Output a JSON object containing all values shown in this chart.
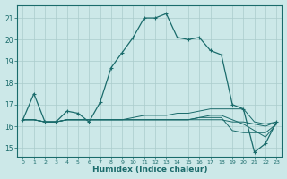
{
  "xlabel": "Humidex (Indice chaleur)",
  "background_color": "#cce8e8",
  "grid_color": "#aacccc",
  "line_color": "#1a6b6b",
  "xlim": [
    -0.5,
    23.5
  ],
  "ylim": [
    14.6,
    21.6
  ],
  "xtick_labels": [
    "0",
    "1",
    "2",
    "3",
    "4",
    "5",
    "6",
    "7",
    "8",
    "9",
    "10",
    "11",
    "12",
    "13",
    "14",
    "15",
    "16",
    "17",
    "18",
    "19",
    "20",
    "21",
    "22",
    "23"
  ],
  "ytick_labels": [
    "15",
    "16",
    "17",
    "18",
    "19",
    "20",
    "21"
  ],
  "series": [
    [
      16.3,
      17.5,
      16.2,
      16.2,
      16.7,
      16.6,
      16.2,
      17.1,
      18.7,
      19.4,
      20.1,
      21.0,
      21.0,
      21.2,
      20.1,
      20.0,
      20.1,
      19.5,
      19.3,
      17.0,
      16.8,
      14.8,
      15.2,
      16.2
    ],
    [
      16.3,
      16.3,
      16.2,
      16.2,
      16.3,
      16.3,
      16.3,
      16.3,
      16.3,
      16.3,
      16.4,
      16.5,
      16.5,
      16.5,
      16.6,
      16.6,
      16.7,
      16.8,
      16.8,
      16.8,
      16.8,
      16.2,
      16.1,
      16.2
    ],
    [
      16.3,
      16.3,
      16.2,
      16.2,
      16.3,
      16.3,
      16.3,
      16.3,
      16.3,
      16.3,
      16.3,
      16.3,
      16.3,
      16.3,
      16.3,
      16.3,
      16.4,
      16.5,
      16.5,
      16.3,
      16.1,
      15.8,
      15.5,
      16.1
    ],
    [
      16.3,
      16.3,
      16.2,
      16.2,
      16.3,
      16.3,
      16.3,
      16.3,
      16.3,
      16.3,
      16.3,
      16.3,
      16.3,
      16.3,
      16.3,
      16.3,
      16.3,
      16.3,
      16.3,
      16.2,
      16.2,
      16.1,
      16.0,
      16.2
    ],
    [
      16.3,
      16.3,
      16.2,
      16.2,
      16.3,
      16.3,
      16.3,
      16.3,
      16.3,
      16.3,
      16.3,
      16.3,
      16.3,
      16.3,
      16.3,
      16.3,
      16.4,
      16.4,
      16.4,
      15.8,
      15.7,
      15.7,
      15.7,
      16.1
    ]
  ]
}
